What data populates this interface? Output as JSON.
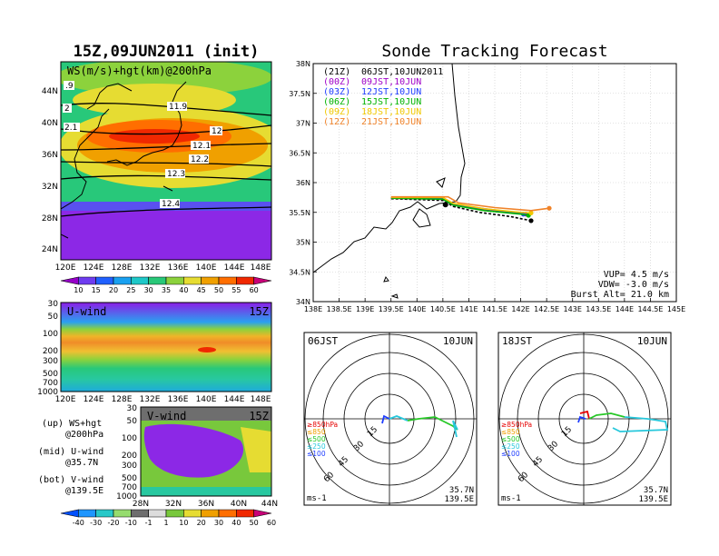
{
  "figure": {
    "left_title": "15Z,09JUN2011 (init)",
    "right_title": "Sonde Tracking Forecast"
  },
  "ws_panel": {
    "label": "WS(m/s)+hgt(km)@200hPa",
    "lon_ticks": [
      "120E",
      "124E",
      "128E",
      "132E",
      "136E",
      "140E",
      "144E",
      "148E"
    ],
    "lat_ticks": [
      "24N",
      "28N",
      "32N",
      "36N",
      "40N",
      "44N"
    ],
    "contour_labels": [
      ".9",
      "2",
      "2.1",
      "11.9",
      "12",
      "12.1",
      "12.2",
      "12.3",
      "12.4"
    ],
    "colorbar_ticks": [
      "10",
      "15",
      "20",
      "25",
      "30",
      "35",
      "40",
      "45",
      "50",
      "55",
      "60"
    ],
    "colorbar_colors": [
      "#9600c8",
      "#6e3cf0",
      "#2060ff",
      "#19a0f0",
      "#1ec8c8",
      "#28c878",
      "#8cd23c",
      "#e6dc32",
      "#f0a000",
      "#ff6e00",
      "#f02800",
      "#c80078"
    ]
  },
  "u_panel": {
    "label": "U-wind",
    "time": "15Z",
    "y_ticks": [
      "30",
      "50",
      "100",
      "200",
      "300",
      "500",
      "700",
      "1000"
    ],
    "x_ticks": [
      "120E",
      "124E",
      "128E",
      "132E",
      "136E",
      "140E",
      "144E",
      "148E"
    ]
  },
  "v_panel": {
    "label": "V-wind",
    "time": "15Z",
    "y_ticks": [
      "30",
      "50",
      "100",
      "200",
      "300",
      "500",
      "700",
      "1000"
    ],
    "x_ticks": [
      "28N",
      "32N",
      "36N",
      "40N",
      "44N"
    ],
    "colorbar_ticks": [
      "-40",
      "-30",
      "-20",
      "-10",
      "-1",
      "1",
      "10",
      "20",
      "30",
      "40",
      "50",
      "60"
    ],
    "colorbar_colors": [
      "#0050ff",
      "#1e96ff",
      "#28c8c8",
      "#96dc6e",
      "#6e6e6e",
      "#dcdcdc",
      "#78c83c",
      "#e6dc32",
      "#f0a000",
      "#ff6e00",
      "#f02800",
      "#c80078"
    ]
  },
  "legend_notes": [
    {
      "a": "(up) WS+hgt",
      "b": "@200hPa"
    },
    {
      "a": "(mid) U-wind",
      "b": "@35.7N"
    },
    {
      "a": "(bot) V-wind",
      "b": "@139.5E"
    }
  ],
  "track_panel": {
    "lat_ticks": [
      "34N",
      "34.5N",
      "35N",
      "35.5N",
      "36N",
      "36.5N",
      "37N",
      "37.5N",
      "38N"
    ],
    "lon_ticks": [
      "138E",
      "138.5E",
      "139E",
      "139.5E",
      "140E",
      "140.5E",
      "141E",
      "141.5E",
      "142E",
      "142.5E",
      "143E",
      "143.5E",
      "144E",
      "144.5E",
      "145E"
    ],
    "legend": [
      {
        "utc": "(21Z)",
        "jst": "06JST,10JUN2011",
        "color": "#000000"
      },
      {
        "utc": "(00Z)",
        "jst": "09JST,10JUN",
        "color": "#a000c8"
      },
      {
        "utc": "(03Z)",
        "jst": "12JST,10JUN",
        "color": "#1e3cff"
      },
      {
        "utc": "(06Z)",
        "jst": "15JST,10JUN",
        "color": "#00b400"
      },
      {
        "utc": "(09Z)",
        "jst": "18JST,10JUN",
        "color": "#f0c800"
      },
      {
        "utc": "(12Z)",
        "jst": "21JST,10JUN",
        "color": "#f08228"
      }
    ],
    "params": [
      "VUP= 4.5 m/s",
      "VDW= -3.0 m/s",
      "Burst Alt= 21.0 km"
    ]
  },
  "chart_data": [
    {
      "type": "line",
      "title": "Sonde Tracking Forecast",
      "xlabel": "",
      "ylabel": "",
      "xlim": [
        138,
        145
      ],
      "ylim": [
        34,
        38
      ],
      "series": [
        {
          "name": "(21Z) 06JST,10JUN2011",
          "color": "#000000",
          "x": [
            139.5,
            140.5,
            140.7,
            141.2,
            141.8,
            142.2
          ],
          "y": [
            35.73,
            35.7,
            35.6,
            35.5,
            35.43,
            35.36
          ]
        },
        {
          "name": "(00Z) 09JST,10JUN",
          "color": "#a000c8",
          "x": [
            139.5,
            140.5,
            140.7,
            141.3,
            141.9,
            142.1
          ],
          "y": [
            35.74,
            35.72,
            35.62,
            35.55,
            35.5,
            35.47
          ]
        },
        {
          "name": "(03Z) 12JST,10JUN",
          "color": "#1e3cff",
          "x": [
            139.5,
            140.5,
            140.7,
            141.3,
            141.9,
            142.05
          ],
          "y": [
            35.74,
            35.73,
            35.63,
            35.56,
            35.5,
            35.47
          ]
        },
        {
          "name": "(06Z) 15JST,10JUN",
          "color": "#00b400",
          "x": [
            139.5,
            140.5,
            140.7,
            141.3,
            142.0,
            142.15
          ],
          "y": [
            35.74,
            35.72,
            35.62,
            35.53,
            35.47,
            35.45
          ]
        },
        {
          "name": "(09Z) 18JST,10JUN",
          "color": "#f0c800",
          "x": [
            139.5,
            140.5,
            140.7,
            141.3,
            142.0,
            142.2
          ],
          "y": [
            35.75,
            35.75,
            35.65,
            35.56,
            35.5,
            35.49
          ]
        },
        {
          "name": "(12Z) 21JST,10JUN",
          "color": "#f08228",
          "x": [
            139.5,
            140.6,
            140.8,
            141.5,
            142.2,
            142.55
          ],
          "y": [
            35.76,
            35.76,
            35.66,
            35.58,
            35.53,
            35.57
          ]
        }
      ],
      "launch_point": {
        "x": 140.55,
        "y": 35.63
      }
    }
  ],
  "polar_left": {
    "time": "06JST",
    "date": "10JUN",
    "levels": [
      "≥850hPa",
      "≤850",
      "≤500",
      "≤250",
      "≤100"
    ],
    "level_colors": [
      "#e60000",
      "#f0a000",
      "#28c828",
      "#28c8dc",
      "#1e3cff"
    ],
    "rings": [
      "15",
      "30",
      "45",
      "60"
    ],
    "units": "ms-1",
    "loc": [
      "35.7N",
      "139.5E"
    ]
  },
  "polar_right": {
    "time": "18JST",
    "date": "10JUN",
    "levels": [
      "≥850hPa",
      "≤850",
      "≤500",
      "≤250",
      "≤100"
    ],
    "level_colors": [
      "#e60000",
      "#f0a000",
      "#28c828",
      "#28c8dc",
      "#1e3cff"
    ],
    "rings": [
      "15",
      "30",
      "45",
      "60"
    ],
    "units": "ms-1",
    "loc": [
      "35.7N",
      "139.5E"
    ]
  }
}
